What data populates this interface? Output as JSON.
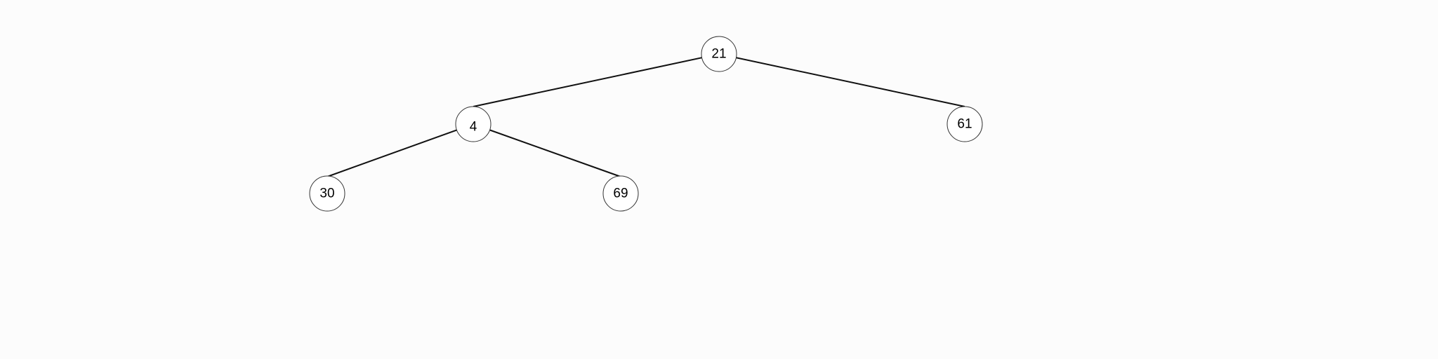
{
  "tree": {
    "nodes": [
      {
        "id": "n21",
        "label": "21"
      },
      {
        "id": "n4",
        "label": "4"
      },
      {
        "id": "n61",
        "label": "61"
      },
      {
        "id": "n30",
        "label": "30"
      },
      {
        "id": "n69",
        "label": "69"
      }
    ],
    "edges": [
      {
        "from": "n21",
        "to": "n4"
      },
      {
        "from": "n21",
        "to": "n61"
      },
      {
        "from": "n4",
        "to": "n30"
      },
      {
        "from": "n4",
        "to": "n69"
      }
    ]
  },
  "colors": {
    "background": "#fcfcfc",
    "node_fill": "#ffffff",
    "node_stroke": "#333333",
    "edge": "#111111",
    "text": "#000000"
  }
}
